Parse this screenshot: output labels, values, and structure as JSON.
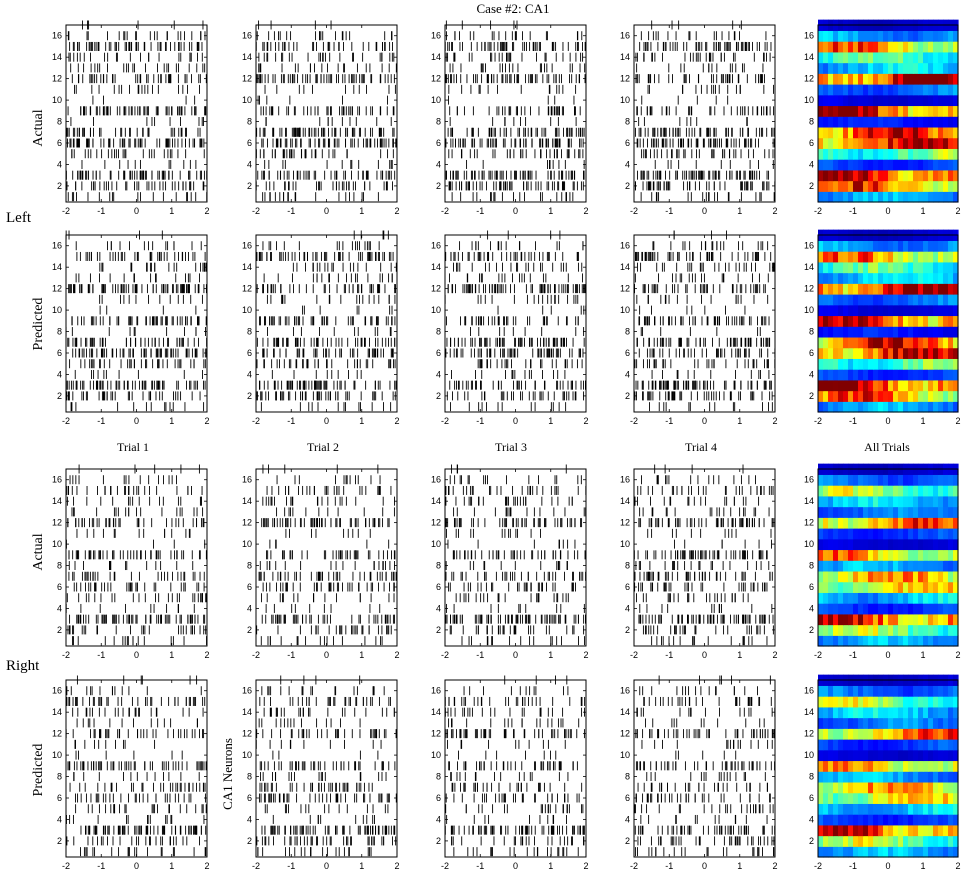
{
  "figure": {
    "title": "Case #2: CA1",
    "condition_labels": [
      "Left",
      "Right"
    ],
    "row_labels": [
      "Actual",
      "Predicted",
      "Actual",
      "Predicted"
    ],
    "column_titles": [
      "Trial 1",
      "Trial 2",
      "Trial 3",
      "Trial 4",
      "All Trials"
    ],
    "axis_label": "CA1 Neurons",
    "colormap": "jet"
  },
  "chart_data": {
    "type": "raster",
    "xlim": [
      -2,
      2
    ],
    "ylim": [
      0.5,
      17
    ],
    "x_ticks": [
      -2,
      -1,
      0,
      1,
      2
    ],
    "y_ticks": [
      2,
      4,
      6,
      8,
      10,
      12,
      14,
      16
    ],
    "neurons": [
      1,
      2,
      3,
      4,
      5,
      6,
      7,
      8,
      9,
      10,
      11,
      12,
      13,
      14,
      15,
      16,
      17
    ],
    "conditions": [
      {
        "name": "Left",
        "neuron_activity_level": [
          0.3,
          0.78,
          0.95,
          0.2,
          0.5,
          0.9,
          0.85,
          0.15,
          0.9,
          0.1,
          0.25,
          0.95,
          0.35,
          0.45,
          0.75,
          0.3,
          0.08
        ]
      },
      {
        "name": "Right",
        "neuron_activity_level": [
          0.3,
          0.55,
          0.9,
          0.2,
          0.35,
          0.65,
          0.7,
          0.3,
          0.72,
          0.1,
          0.2,
          0.78,
          0.25,
          0.35,
          0.55,
          0.25,
          0.08
        ]
      }
    ]
  }
}
